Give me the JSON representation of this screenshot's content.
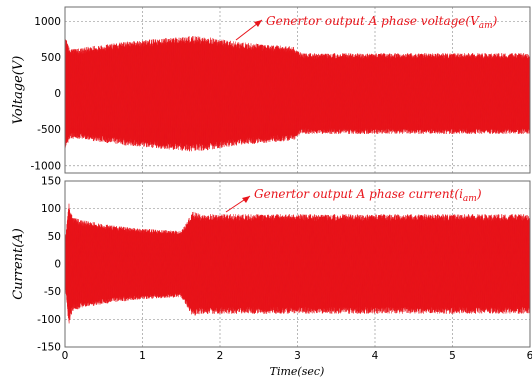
{
  "chart_data": [
    {
      "type": "line",
      "ylabel_main": "Voltage",
      "ylabel_unit": "(V)",
      "xlim": [
        0,
        6
      ],
      "ylim": [
        -1100,
        1200
      ],
      "yticks": [
        1000,
        500,
        0,
        -500,
        -1000
      ],
      "yticklabels": [
        "1000",
        "500",
        "0",
        "-500",
        "-1000"
      ],
      "grid": true,
      "line_color": "#e8141b",
      "annotation": {
        "text": "Genertor output A phase voltage(",
        "math_main": "V",
        "math_sub": "am",
        "close": ")"
      },
      "series": [
        {
          "x": [
            0,
            0.05,
            0.15,
            0.3,
            0.5,
            0.8,
            1.2,
            1.6,
            1.8,
            2.2,
            2.6,
            2.95,
            3.05,
            3.5,
            4.0,
            5.0,
            6.0
          ],
          "envelope": [
            820,
            640,
            620,
            650,
            680,
            720,
            760,
            800,
            790,
            720,
            680,
            650,
            560,
            560,
            560,
            560,
            560
          ]
        }
      ]
    },
    {
      "type": "line",
      "ylabel_main": "Current",
      "ylabel_unit": "(A)",
      "xlim": [
        0,
        6
      ],
      "ylim": [
        -150,
        150
      ],
      "yticks": [
        150,
        100,
        50,
        0,
        -50,
        -100,
        -150
      ],
      "yticklabels": [
        "150",
        "100",
        "50",
        "0",
        "-50",
        "-100",
        "-150"
      ],
      "xticks": [
        0,
        1,
        2,
        3,
        4,
        5,
        6
      ],
      "xticklabels": [
        "0",
        "1",
        "2",
        "3",
        "4",
        "5",
        "6"
      ],
      "xlabel": "Time(sec)",
      "grid": true,
      "line_color": "#e8141b",
      "annotation": {
        "text": "Genertor output A phase current(",
        "math_main": "i",
        "math_sub": "am",
        "close": ")"
      },
      "series": [
        {
          "x": [
            0,
            0.05,
            0.1,
            0.2,
            0.4,
            0.6,
            0.9,
            1.2,
            1.5,
            1.65,
            1.75,
            2.0,
            3.0,
            4.0,
            5.0,
            6.0
          ],
          "envelope": [
            40,
            110,
            85,
            80,
            75,
            70,
            65,
            62,
            60,
            95,
            90,
            90,
            90,
            90,
            90,
            90
          ]
        }
      ]
    }
  ]
}
